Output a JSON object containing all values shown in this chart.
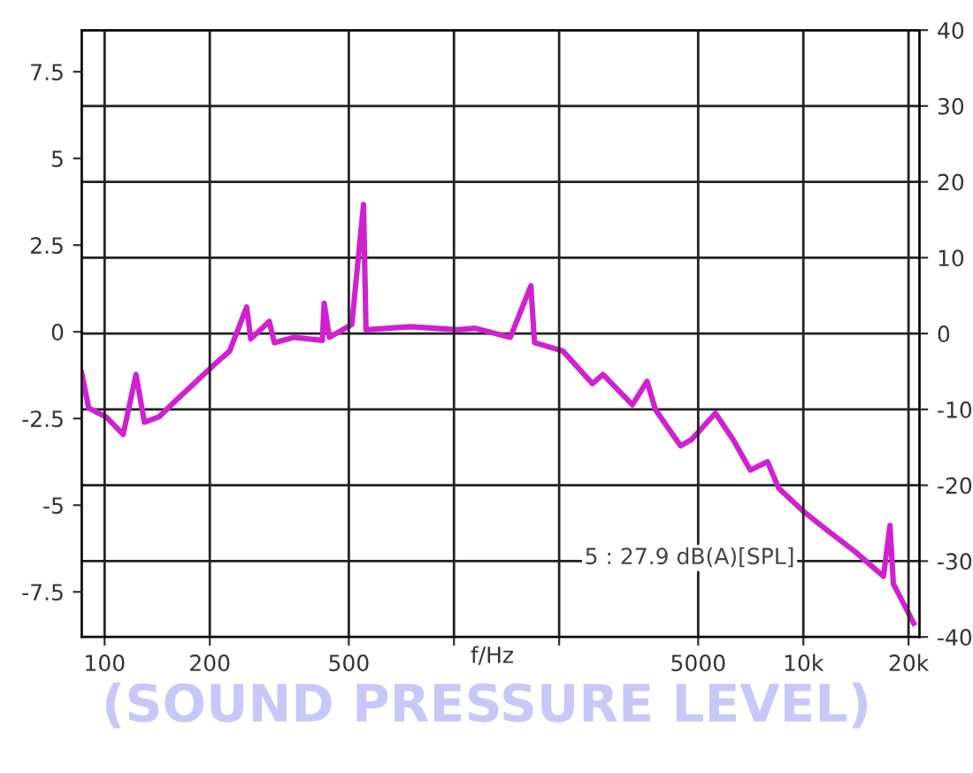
{
  "chart_data": {
    "type": "line",
    "xlabel": "f/Hz",
    "log": "x",
    "grid": true,
    "xlim": [
      86,
      21500
    ],
    "xticks": [
      100,
      200,
      500,
      {
        "value": 1000,
        "label": null
      },
      {
        "value": 2000,
        "label": null
      },
      5000,
      {
        "value": 10000,
        "label": "10k"
      },
      {
        "value": 20000,
        "label": "20k"
      }
    ],
    "ylim": [
      -8.8,
      8.7
    ],
    "yticks": [
      -7.5,
      -5,
      -2.5,
      0,
      2.5,
      5,
      7.5
    ],
    "y2lim": [
      -40,
      40
    ],
    "y2ticks": [
      -40,
      -30,
      -20,
      -10,
      0,
      10,
      20,
      30,
      40
    ],
    "series": [
      {
        "color": "#d020d0",
        "axis": "y2",
        "x": [
          86,
          90,
          101,
          113,
          123,
          130,
          143,
          161,
          187,
          207,
          228,
          255,
          262,
          296,
          306,
          349,
          420,
          425,
          440,
          510,
          551,
          560,
          751,
          1024,
          1150,
          1450,
          1660,
          1700,
          2050,
          2490,
          2670,
          3240,
          3570,
          3770,
          4450,
          4780,
          5600,
          6300,
          7050,
          7900,
          8500,
          9980,
          11600,
          14100,
          16960,
          17700,
          18100,
          20700
        ],
        "values": [
          -5.2,
          -9.8,
          -11,
          -13.3,
          -5.4,
          -11.7,
          -11,
          -8.7,
          -5.9,
          -4,
          -2.3,
          3.5,
          -0.7,
          1.6,
          -1.2,
          -0.5,
          -0.9,
          4,
          -0.5,
          1.2,
          17,
          0.5,
          0.9,
          0.5,
          0.7,
          -0.5,
          6.3,
          -1.2,
          -2.3,
          -6.6,
          -5.4,
          -9.4,
          -6.3,
          -10,
          -14.8,
          -14,
          -10.5,
          -14,
          -18,
          -16.9,
          -20.4,
          -23.4,
          -25.8,
          -28.8,
          -32,
          -25.3,
          -33,
          -38.2
        ]
      }
    ],
    "annotations": [
      "5 : 27.9 dB(A)[SPL]",
      "(SOUND PRESSURE LEVEL)"
    ]
  }
}
